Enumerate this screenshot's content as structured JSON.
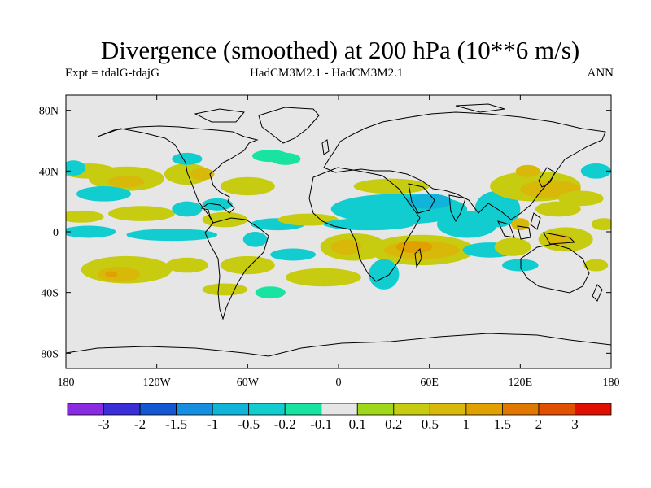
{
  "chart_data": {
    "type": "map-contour",
    "title": "Divergence (smoothed) at 200 hPa (10**6 m/s)",
    "subtitle_left": "Expt = tdalG-tdajG",
    "subtitle_center": "HadCM3M2.1 - HadCM3M2.1",
    "subtitle_right": "ANN",
    "x_ticks": [
      {
        "value": -180,
        "label": "180"
      },
      {
        "value": -120,
        "label": "120W"
      },
      {
        "value": -60,
        "label": "60W"
      },
      {
        "value": 0,
        "label": "0"
      },
      {
        "value": 60,
        "label": "60E"
      },
      {
        "value": 120,
        "label": "120E"
      },
      {
        "value": 180,
        "label": "180"
      }
    ],
    "y_ticks": [
      {
        "value": 80,
        "label": "80N"
      },
      {
        "value": 40,
        "label": "40N"
      },
      {
        "value": 0,
        "label": "0"
      },
      {
        "value": -40,
        "label": "40S"
      },
      {
        "value": -80,
        "label": "80S"
      }
    ],
    "xlim": [
      -180,
      180
    ],
    "ylim": [
      -90,
      90
    ],
    "colorbar": {
      "bins": [
        {
          "color": "#8a2be2"
        },
        {
          "color": "#3a2fd6"
        },
        {
          "color": "#1457d2"
        },
        {
          "color": "#168fe0"
        },
        {
          "color": "#10b4d8"
        },
        {
          "color": "#11cdd0"
        },
        {
          "color": "#18e3a0"
        },
        {
          "color": "#e6e6e6"
        },
        {
          "color": "#9fd81a"
        },
        {
          "color": "#c8cc10"
        },
        {
          "color": "#d8b808"
        },
        {
          "color": "#e0a000"
        },
        {
          "color": "#e07800"
        },
        {
          "color": "#e05000"
        },
        {
          "color": "#e01000"
        }
      ],
      "labels": [
        "-3",
        "-2",
        "-1.5",
        "-1",
        "-0.5",
        "-0.2",
        "-0.1",
        "0.1",
        "0.2",
        "0.5",
        "1",
        "1.5",
        "2",
        "3"
      ]
    },
    "regions": [
      {
        "lon": -165,
        "lat": 40,
        "rx": 18,
        "ry": 5,
        "level": "0.2"
      },
      {
        "lon": -175,
        "lat": 42,
        "rx": 8,
        "ry": 5,
        "level": "-0.2"
      },
      {
        "lon": -140,
        "lat": 35,
        "rx": 25,
        "ry": 8,
        "level": "0.2"
      },
      {
        "lon": -140,
        "lat": 33,
        "rx": 12,
        "ry": 4,
        "level": "0.5"
      },
      {
        "lon": -155,
        "lat": 25,
        "rx": 18,
        "ry": 5,
        "level": "-0.2"
      },
      {
        "lon": -100,
        "lat": 38,
        "rx": 15,
        "ry": 7,
        "level": "0.2"
      },
      {
        "lon": -90,
        "lat": 38,
        "rx": 8,
        "ry": 4,
        "level": "0.5"
      },
      {
        "lon": -100,
        "lat": 48,
        "rx": 10,
        "ry": 4,
        "level": "-0.2"
      },
      {
        "lon": -45,
        "lat": 50,
        "rx": 12,
        "ry": 4,
        "level": "-0.1"
      },
      {
        "lon": -60,
        "lat": 30,
        "rx": 18,
        "ry": 6,
        "level": "0.2"
      },
      {
        "lon": -170,
        "lat": 10,
        "rx": 15,
        "ry": 4,
        "level": "0.2"
      },
      {
        "lon": -130,
        "lat": 12,
        "rx": 22,
        "ry": 5,
        "level": "0.2"
      },
      {
        "lon": -100,
        "lat": 15,
        "rx": 10,
        "ry": 5,
        "level": "-0.2"
      },
      {
        "lon": -75,
        "lat": 8,
        "rx": 15,
        "ry": 5,
        "level": "0.2"
      },
      {
        "lon": -80,
        "lat": 18,
        "rx": 10,
        "ry": 4,
        "level": "-0.2"
      },
      {
        "lon": -40,
        "lat": 5,
        "rx": 18,
        "ry": 4,
        "level": "-0.2"
      },
      {
        "lon": -20,
        "lat": 8,
        "rx": 20,
        "ry": 4,
        "level": "0.2"
      },
      {
        "lon": -165,
        "lat": 0,
        "rx": 18,
        "ry": 4,
        "level": "-0.2"
      },
      {
        "lon": -110,
        "lat": -2,
        "rx": 30,
        "ry": 4,
        "level": "-0.2"
      },
      {
        "lon": -55,
        "lat": -5,
        "rx": 8,
        "ry": 5,
        "level": "-0.2"
      },
      {
        "lon": -140,
        "lat": -25,
        "rx": 30,
        "ry": 9,
        "level": "0.2"
      },
      {
        "lon": -145,
        "lat": -28,
        "rx": 14,
        "ry": 5,
        "level": "0.5"
      },
      {
        "lon": -150,
        "lat": -28,
        "rx": 4,
        "ry": 2,
        "level": "1"
      },
      {
        "lon": -100,
        "lat": -22,
        "rx": 14,
        "ry": 5,
        "level": "0.2"
      },
      {
        "lon": -60,
        "lat": -22,
        "rx": 18,
        "ry": 6,
        "level": "0.2"
      },
      {
        "lon": -30,
        "lat": -15,
        "rx": 15,
        "ry": 4,
        "level": "-0.2"
      },
      {
        "lon": -75,
        "lat": -38,
        "rx": 15,
        "ry": 4,
        "level": "0.2"
      },
      {
        "lon": -45,
        "lat": -40,
        "rx": 10,
        "ry": 4,
        "level": "-0.1"
      },
      {
        "lon": -10,
        "lat": -30,
        "rx": 25,
        "ry": 6,
        "level": "0.2"
      },
      {
        "lon": 40,
        "lat": 15,
        "rx": 45,
        "ry": 10,
        "level": "-0.2"
      },
      {
        "lon": 60,
        "lat": 20,
        "rx": 15,
        "ry": 5,
        "level": "-0.5"
      },
      {
        "lon": 35,
        "lat": 30,
        "rx": 25,
        "ry": 5,
        "level": "0.2"
      },
      {
        "lon": 20,
        "lat": 5,
        "rx": 30,
        "ry": 4,
        "level": "-0.2"
      },
      {
        "lon": 10,
        "lat": -10,
        "rx": 22,
        "ry": 9,
        "level": "0.2"
      },
      {
        "lon": 5,
        "lat": -10,
        "rx": 10,
        "ry": 5,
        "level": "0.5"
      },
      {
        "lon": 55,
        "lat": -12,
        "rx": 35,
        "ry": 10,
        "level": "0.2"
      },
      {
        "lon": 55,
        "lat": -12,
        "rx": 25,
        "ry": 6,
        "level": "0.5"
      },
      {
        "lon": 50,
        "lat": -10,
        "rx": 12,
        "ry": 4,
        "level": "1"
      },
      {
        "lon": 30,
        "lat": -28,
        "rx": 10,
        "ry": 10,
        "level": "-0.2"
      },
      {
        "lon": 85,
        "lat": 5,
        "rx": 20,
        "ry": 9,
        "level": "-0.2"
      },
      {
        "lon": 100,
        "lat": -12,
        "rx": 18,
        "ry": 5,
        "level": "-0.2"
      },
      {
        "lon": 105,
        "lat": 15,
        "rx": 15,
        "ry": 12,
        "level": "-0.2"
      },
      {
        "lon": 130,
        "lat": 30,
        "rx": 30,
        "ry": 10,
        "level": "0.2"
      },
      {
        "lon": 140,
        "lat": 28,
        "rx": 20,
        "ry": 6,
        "level": "0.5"
      },
      {
        "lon": 125,
        "lat": 40,
        "rx": 8,
        "ry": 4,
        "level": "0.5"
      },
      {
        "lon": 145,
        "lat": 15,
        "rx": 15,
        "ry": 5,
        "level": "0.2"
      },
      {
        "lon": 150,
        "lat": -5,
        "rx": 18,
        "ry": 8,
        "level": "0.2"
      },
      {
        "lon": 145,
        "lat": -5,
        "rx": 8,
        "ry": 4,
        "level": "0.5"
      },
      {
        "lon": 115,
        "lat": -10,
        "rx": 12,
        "ry": 6,
        "level": "0.2"
      },
      {
        "lon": 160,
        "lat": 22,
        "rx": 15,
        "ry": 5,
        "level": "0.2"
      },
      {
        "lon": 170,
        "lat": 40,
        "rx": 10,
        "ry": 5,
        "level": "-0.2"
      },
      {
        "lon": 175,
        "lat": 5,
        "rx": 8,
        "ry": 4,
        "level": "0.2"
      },
      {
        "lon": 170,
        "lat": -22,
        "rx": 8,
        "ry": 4,
        "level": "0.2"
      },
      {
        "lon": 120,
        "lat": -22,
        "rx": 12,
        "ry": 4,
        "level": "-0.2"
      },
      {
        "lon": 120,
        "lat": 5,
        "rx": 6,
        "ry": 4,
        "level": "0.5"
      },
      {
        "lon": -35,
        "lat": 48,
        "rx": 10,
        "ry": 4,
        "level": "-0.1"
      }
    ]
  }
}
